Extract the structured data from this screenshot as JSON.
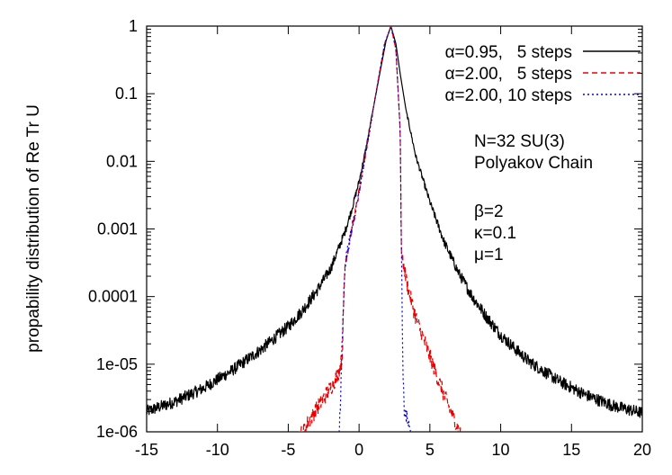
{
  "chart_data": {
    "type": "line",
    "title": "",
    "xlabel": "",
    "ylabel": "propability distribution of Re Tr U",
    "xlim": [
      -15,
      20
    ],
    "ylim": [
      1e-06,
      1
    ],
    "yscale": "log",
    "grid": false,
    "legend_position": "top-right",
    "x_ticks": [
      {
        "value": -15,
        "label": "-15"
      },
      {
        "value": -10,
        "label": "-10"
      },
      {
        "value": -5,
        "label": "-5"
      },
      {
        "value": 0,
        "label": "0"
      },
      {
        "value": 5,
        "label": "5"
      },
      {
        "value": 10,
        "label": "10"
      },
      {
        "value": 15,
        "label": "15"
      },
      {
        "value": 20,
        "label": "20"
      }
    ],
    "y_ticks": [
      {
        "value": 1,
        "label": "1"
      },
      {
        "value": 0.1,
        "label": "0.1"
      },
      {
        "value": 0.01,
        "label": "0.01"
      },
      {
        "value": 0.001,
        "label": "0.001"
      },
      {
        "value": 0.0001,
        "label": "0.0001"
      },
      {
        "value": 1e-05,
        "label": "1e-05"
      },
      {
        "value": 1e-06,
        "label": "1e-06"
      }
    ],
    "annotations": [
      "N=32 SU(3)",
      "Polyakov Chain",
      "β=2",
      "κ=0.1",
      "μ=1"
    ],
    "series": [
      {
        "name": "α=0.95,   5 steps",
        "color": "#000000",
        "dash": "solid",
        "noise": 0.09,
        "points": [
          [
            -15,
            2e-06
          ],
          [
            -13,
            2.8e-06
          ],
          [
            -11,
            4.4e-06
          ],
          [
            -9,
            8e-06
          ],
          [
            -7,
            1.6e-05
          ],
          [
            -5,
            3.6e-05
          ],
          [
            -4,
            6.2e-05
          ],
          [
            -3,
            0.00012
          ],
          [
            -2,
            0.00026
          ],
          [
            -1,
            0.0009
          ],
          [
            -0.5,
            0.002
          ],
          [
            0,
            0.005
          ],
          [
            0.5,
            0.016
          ],
          [
            1,
            0.06
          ],
          [
            1.5,
            0.22
          ],
          [
            1.9,
            0.6
          ],
          [
            2.25,
            1.0
          ],
          [
            2.6,
            0.55
          ],
          [
            2.9,
            0.2
          ],
          [
            3.3,
            0.06
          ],
          [
            4,
            0.012
          ],
          [
            5,
            0.0025
          ],
          [
            6,
            0.00065
          ],
          [
            7,
            0.00023
          ],
          [
            8,
            0.0001
          ],
          [
            9,
            5e-05
          ],
          [
            10,
            2.7e-05
          ],
          [
            11,
            1.7e-05
          ],
          [
            12,
            1.1e-05
          ],
          [
            14,
            5.8e-06
          ],
          [
            16,
            3.5e-06
          ],
          [
            18,
            2.4e-06
          ],
          [
            20,
            1.9e-06
          ]
        ]
      },
      {
        "name": "α=2.00,   5 steps",
        "color": "#ee0000",
        "dash": "6,4",
        "noise": 0.12,
        "points": [
          [
            -5,
            5e-07
          ],
          [
            -4,
            1e-06
          ],
          [
            -3,
            2.2e-06
          ],
          [
            -2,
            4.5e-06
          ],
          [
            -1.5,
            7e-06
          ],
          [
            -1.2,
            1.2e-05
          ],
          [
            -1,
            0.0003
          ],
          [
            0,
            0.0035
          ],
          [
            1,
            0.06
          ],
          [
            1.8,
            0.55
          ],
          [
            2.25,
            1.0
          ],
          [
            2.6,
            0.45
          ],
          [
            2.9,
            0.03
          ],
          [
            3.0,
            0.0004
          ],
          [
            3.5,
            0.00012
          ],
          [
            4,
            5e-05
          ],
          [
            5,
            1.3e-05
          ],
          [
            6,
            3.5e-06
          ],
          [
            7,
            1.1e-06
          ],
          [
            7.5,
            6e-07
          ]
        ]
      },
      {
        "name": "α=2.00, 10 steps",
        "color": "#0000dd",
        "dash": "2,3",
        "noise": 0.12,
        "points": [
          [
            -1.5,
            5e-07
          ],
          [
            -1.3,
            3e-06
          ],
          [
            -1.2,
            2e-05
          ],
          [
            -1,
            0.0003
          ],
          [
            0,
            0.0035
          ],
          [
            1,
            0.06
          ],
          [
            1.8,
            0.55
          ],
          [
            2.25,
            1.0
          ],
          [
            2.6,
            0.45
          ],
          [
            2.9,
            0.03
          ],
          [
            3.0,
            0.0003
          ],
          [
            3.1,
            6e-06
          ],
          [
            3.2,
            2e-06
          ],
          [
            3.4,
            1.5e-06
          ],
          [
            3.6,
            1e-06
          ],
          [
            3.8,
            6e-07
          ]
        ]
      }
    ]
  }
}
